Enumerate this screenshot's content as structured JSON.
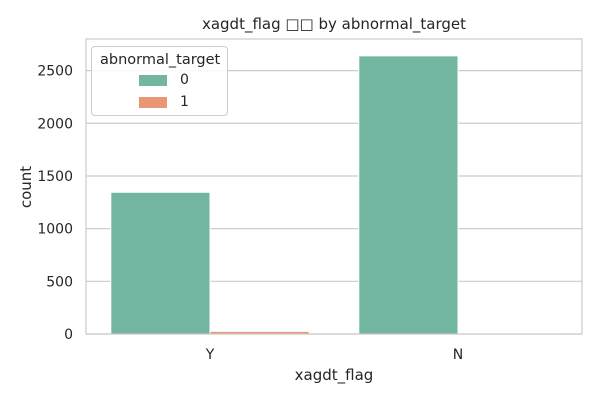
{
  "chart_data": {
    "type": "bar",
    "title": "xagdt_flag □□ by abnormal_target",
    "xlabel": "xagdt_flag",
    "ylabel": "count",
    "categories": [
      "Y",
      "N"
    ],
    "ylim": [
      0,
      2800
    ],
    "yticks": [
      0,
      500,
      1000,
      1500,
      2000,
      2500
    ],
    "grid": true,
    "legend": {
      "title": "abnormal_target",
      "placement": "top-left"
    },
    "series": [
      {
        "name": "0",
        "color": "#72b6a1",
        "values": [
          1345,
          2640
        ]
      },
      {
        "name": "1",
        "color": "#e99675",
        "values": [
          25,
          4
        ]
      }
    ]
  }
}
